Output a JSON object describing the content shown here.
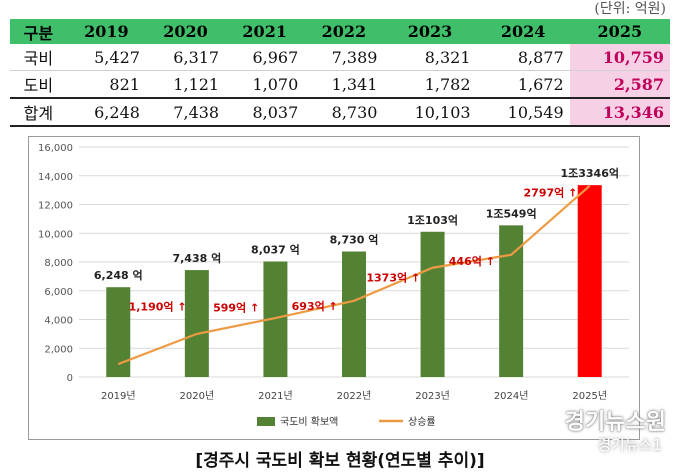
{
  "unit_label": "(단위: 억원)",
  "table": {
    "header": [
      "구분",
      "2019",
      "2020",
      "2021",
      "2022",
      "2023",
      "2024",
      "2025"
    ],
    "rows": [
      [
        "국비",
        "5,427",
        "6,317",
        "6,967",
        "7,389",
        "8,321",
        "8,877",
        "10,759"
      ],
      [
        "도비",
        "821",
        "1,121",
        "1,070",
        "1,341",
        "1,782",
        "1,672",
        "2,587"
      ],
      [
        "합계",
        "6,248",
        "7,438",
        "8,037",
        "8,730",
        "10,103",
        "10,549",
        "13,346"
      ]
    ]
  },
  "chart_data": {
    "type": "bar",
    "categories": [
      "2019년",
      "2020년",
      "2021년",
      "2022년",
      "2023년",
      "2024년",
      "2025년"
    ],
    "series": [
      {
        "name": "국도비 확보액",
        "type": "bar",
        "values": [
          6248,
          7438,
          8037,
          8730,
          10103,
          10549,
          13346
        ]
      },
      {
        "name": "상승률",
        "type": "line",
        "values": [
          900,
          3000,
          4100,
          5300,
          7600,
          8500,
          13300
        ]
      }
    ],
    "ylim": [
      0,
      16000
    ],
    "yticks": [
      "0",
      "2,000",
      "4,000",
      "6,000",
      "8,000",
      "10,000",
      "12,000",
      "14,000",
      "16,000"
    ],
    "grid": true,
    "legend_position": "bottom",
    "bar_labels": [
      "6,248 억",
      "7,438 억",
      "8,037 억",
      "8,730 억",
      "1조103억",
      "1조549억",
      "1조3346억"
    ],
    "increase_labels": [
      "1,190억",
      "599억",
      "693억",
      "1373억",
      "446억",
      "2797억"
    ],
    "colors": {
      "bar": "#548235",
      "highlight_bar": "#ff0000",
      "line": "#ed9a43",
      "increase_text": "#cc0000"
    }
  },
  "caption": "[경주시 국도비 확보 현황(연도별 추이)]",
  "watermark": {
    "top": "경기뉴스원",
    "bottom": "경기뉴스1"
  }
}
